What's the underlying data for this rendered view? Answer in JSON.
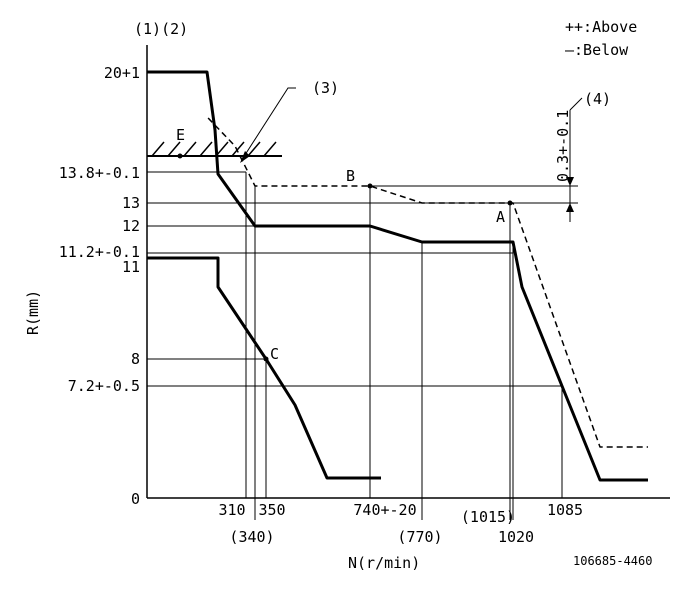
{
  "header": {
    "left_label": "(1)(2)"
  },
  "legend": {
    "above": "++:Above",
    "below": "—:Below"
  },
  "axes": {
    "ylabel": "R(mm)",
    "xlabel": "N(r/min)"
  },
  "y_ticks": [
    "20+1",
    "13.8+-0.1",
    "13",
    "12",
    "11.2+-0.1",
    "11",
    "8",
    "7.2+-0.5",
    "0"
  ],
  "x_ticks": [
    "310",
    "350",
    "740+-20",
    "1085",
    "(340)",
    "(770)",
    "(1015)",
    "1020"
  ],
  "points": {
    "E": "E",
    "B": "B",
    "A": "A",
    "C": "C"
  },
  "callouts": {
    "c3": "(3)",
    "c4": "(4)",
    "gap": "0.3+-0.1"
  },
  "figure_id": "106685-4460",
  "colors": {
    "line": "#000000",
    "background": "#ffffff"
  },
  "chart_data": {
    "type": "line",
    "xlabel": "N(r/min)",
    "ylabel": "R(mm)",
    "series": [
      {
        "name": "Above",
        "style": "dashed",
        "x": [
          252,
          300,
          340,
          740,
          770,
          1015,
          1020,
          1150,
          1250
        ],
        "y": [
          16.3,
          15,
          13.3,
          13.3,
          13,
          13,
          13,
          3,
          3
        ]
      },
      {
        "name": "Below",
        "style": "solid",
        "x": [
          0,
          250,
          265,
          275,
          330,
          740,
          770,
          1020,
          1035,
          1085,
          1150,
          1250
        ],
        "y": [
          20,
          20,
          15.8,
          14,
          12,
          12,
          11.2,
          11.2,
          10,
          7.2,
          1.5,
          1.5
        ]
      },
      {
        "name": "C",
        "style": "solid",
        "x": [
          0,
          250,
          265,
          350,
          440,
          500,
          620
        ],
        "y": [
          11,
          11,
          10,
          8,
          5.5,
          1.5,
          1.5
        ]
      }
    ]
  }
}
